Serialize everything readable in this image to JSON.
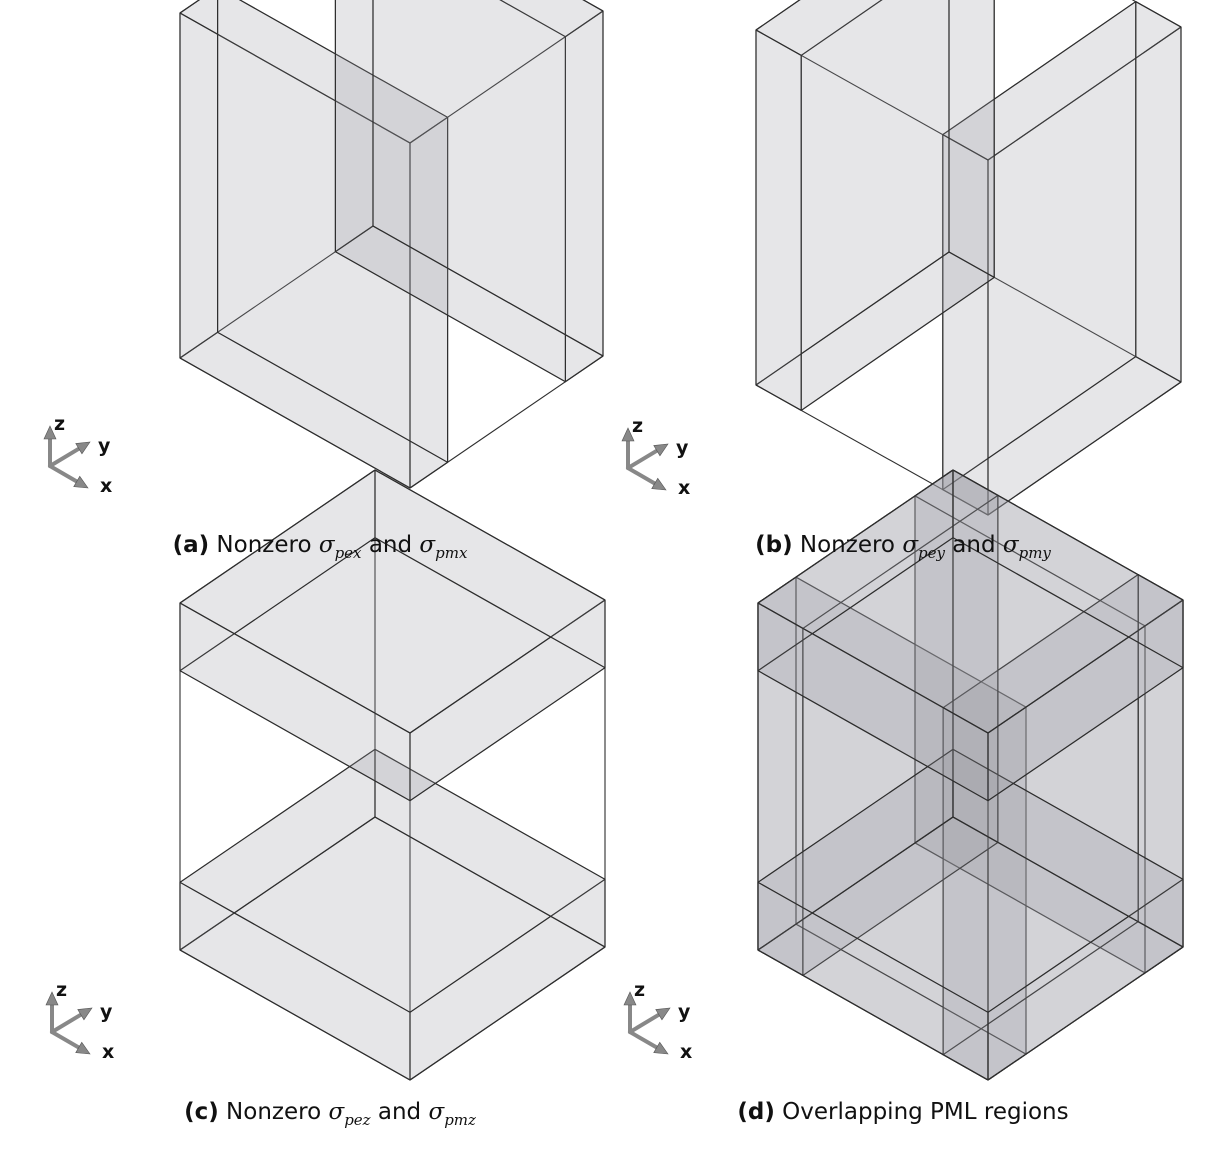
{
  "panels": [
    {
      "id": "a",
      "tag": "(a)",
      "text_pre": " Nonzero ",
      "sym1": "σ",
      "sub1": "pex",
      "text_mid": " and ",
      "sym2": "σ",
      "sub2": "pmx"
    },
    {
      "id": "b",
      "tag": "(b)",
      "text_pre": " Nonzero ",
      "sym1": "σ",
      "sub1": "pey",
      "text_mid": " and ",
      "sym2": "σ",
      "sub2": "pmy"
    },
    {
      "id": "c",
      "tag": "(c)",
      "text_pre": " Nonzero ",
      "sym1": "σ",
      "sub1": "pez",
      "text_mid": " and ",
      "sym2": "σ",
      "sub2": "pmz"
    },
    {
      "id": "d",
      "tag": "(d)",
      "text_pre": " Overlapping PML regions",
      "sym1": "",
      "sub1": "",
      "text_mid": "",
      "sym2": "",
      "sub2": ""
    }
  ],
  "axes_labels": {
    "x": "x",
    "y": "y",
    "z": "z"
  },
  "colors": {
    "fill": "#9a9ba0",
    "edge": "#2e2e2e",
    "arrow": "#888888"
  }
}
